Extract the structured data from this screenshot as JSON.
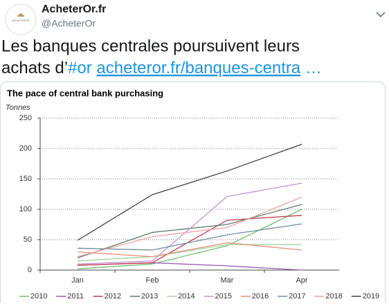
{
  "tweet": {
    "display_name": "AcheterOr.fr",
    "handle": "@AcheterOr",
    "avatar_text": "ACHETEROR",
    "text_line1": "Les banques centrales poursuivent leurs",
    "text_line2_start": "achats d’",
    "hashtag": "#or",
    "link": "acheteror.fr/banques-centra",
    "ellipsis": "…"
  },
  "chart_data": {
    "type": "line",
    "title": "The pace of central bank purchasing",
    "y_label": "Tonnes",
    "categories": [
      "Jan",
      "Feb",
      "Mar",
      "Apr"
    ],
    "ylim": [
      0,
      250
    ],
    "yticks": [
      0,
      50,
      100,
      150,
      200,
      250
    ],
    "grid": true,
    "series": [
      {
        "name": "2010",
        "color": "#6cbf6c",
        "values": [
          2,
          10,
          40,
          100
        ]
      },
      {
        "name": "2011",
        "color": "#9b59b6",
        "values": [
          8,
          12,
          7,
          0
        ]
      },
      {
        "name": "2012",
        "color": "#c0394b",
        "values": [
          8,
          12,
          82,
          90
        ]
      },
      {
        "name": "2013",
        "color": "#5a7a6a",
        "values": [
          20,
          62,
          75,
          108
        ]
      },
      {
        "name": "2014",
        "color": "#9fd39f",
        "values": [
          15,
          22,
          42,
          42
        ]
      },
      {
        "name": "2015",
        "color": "#c490d1",
        "values": [
          10,
          15,
          121,
          143
        ]
      },
      {
        "name": "2016",
        "color": "#e58e78",
        "values": [
          30,
          22,
          45,
          33
        ]
      },
      {
        "name": "2017",
        "color": "#6f8fa0",
        "values": [
          36,
          33,
          58,
          76
        ]
      },
      {
        "name": "2018",
        "color": "#f0a0a0",
        "values": [
          22,
          55,
          70,
          120
        ]
      },
      {
        "name": "2019",
        "color": "#404040",
        "values": [
          49,
          124,
          163,
          207
        ]
      }
    ]
  }
}
